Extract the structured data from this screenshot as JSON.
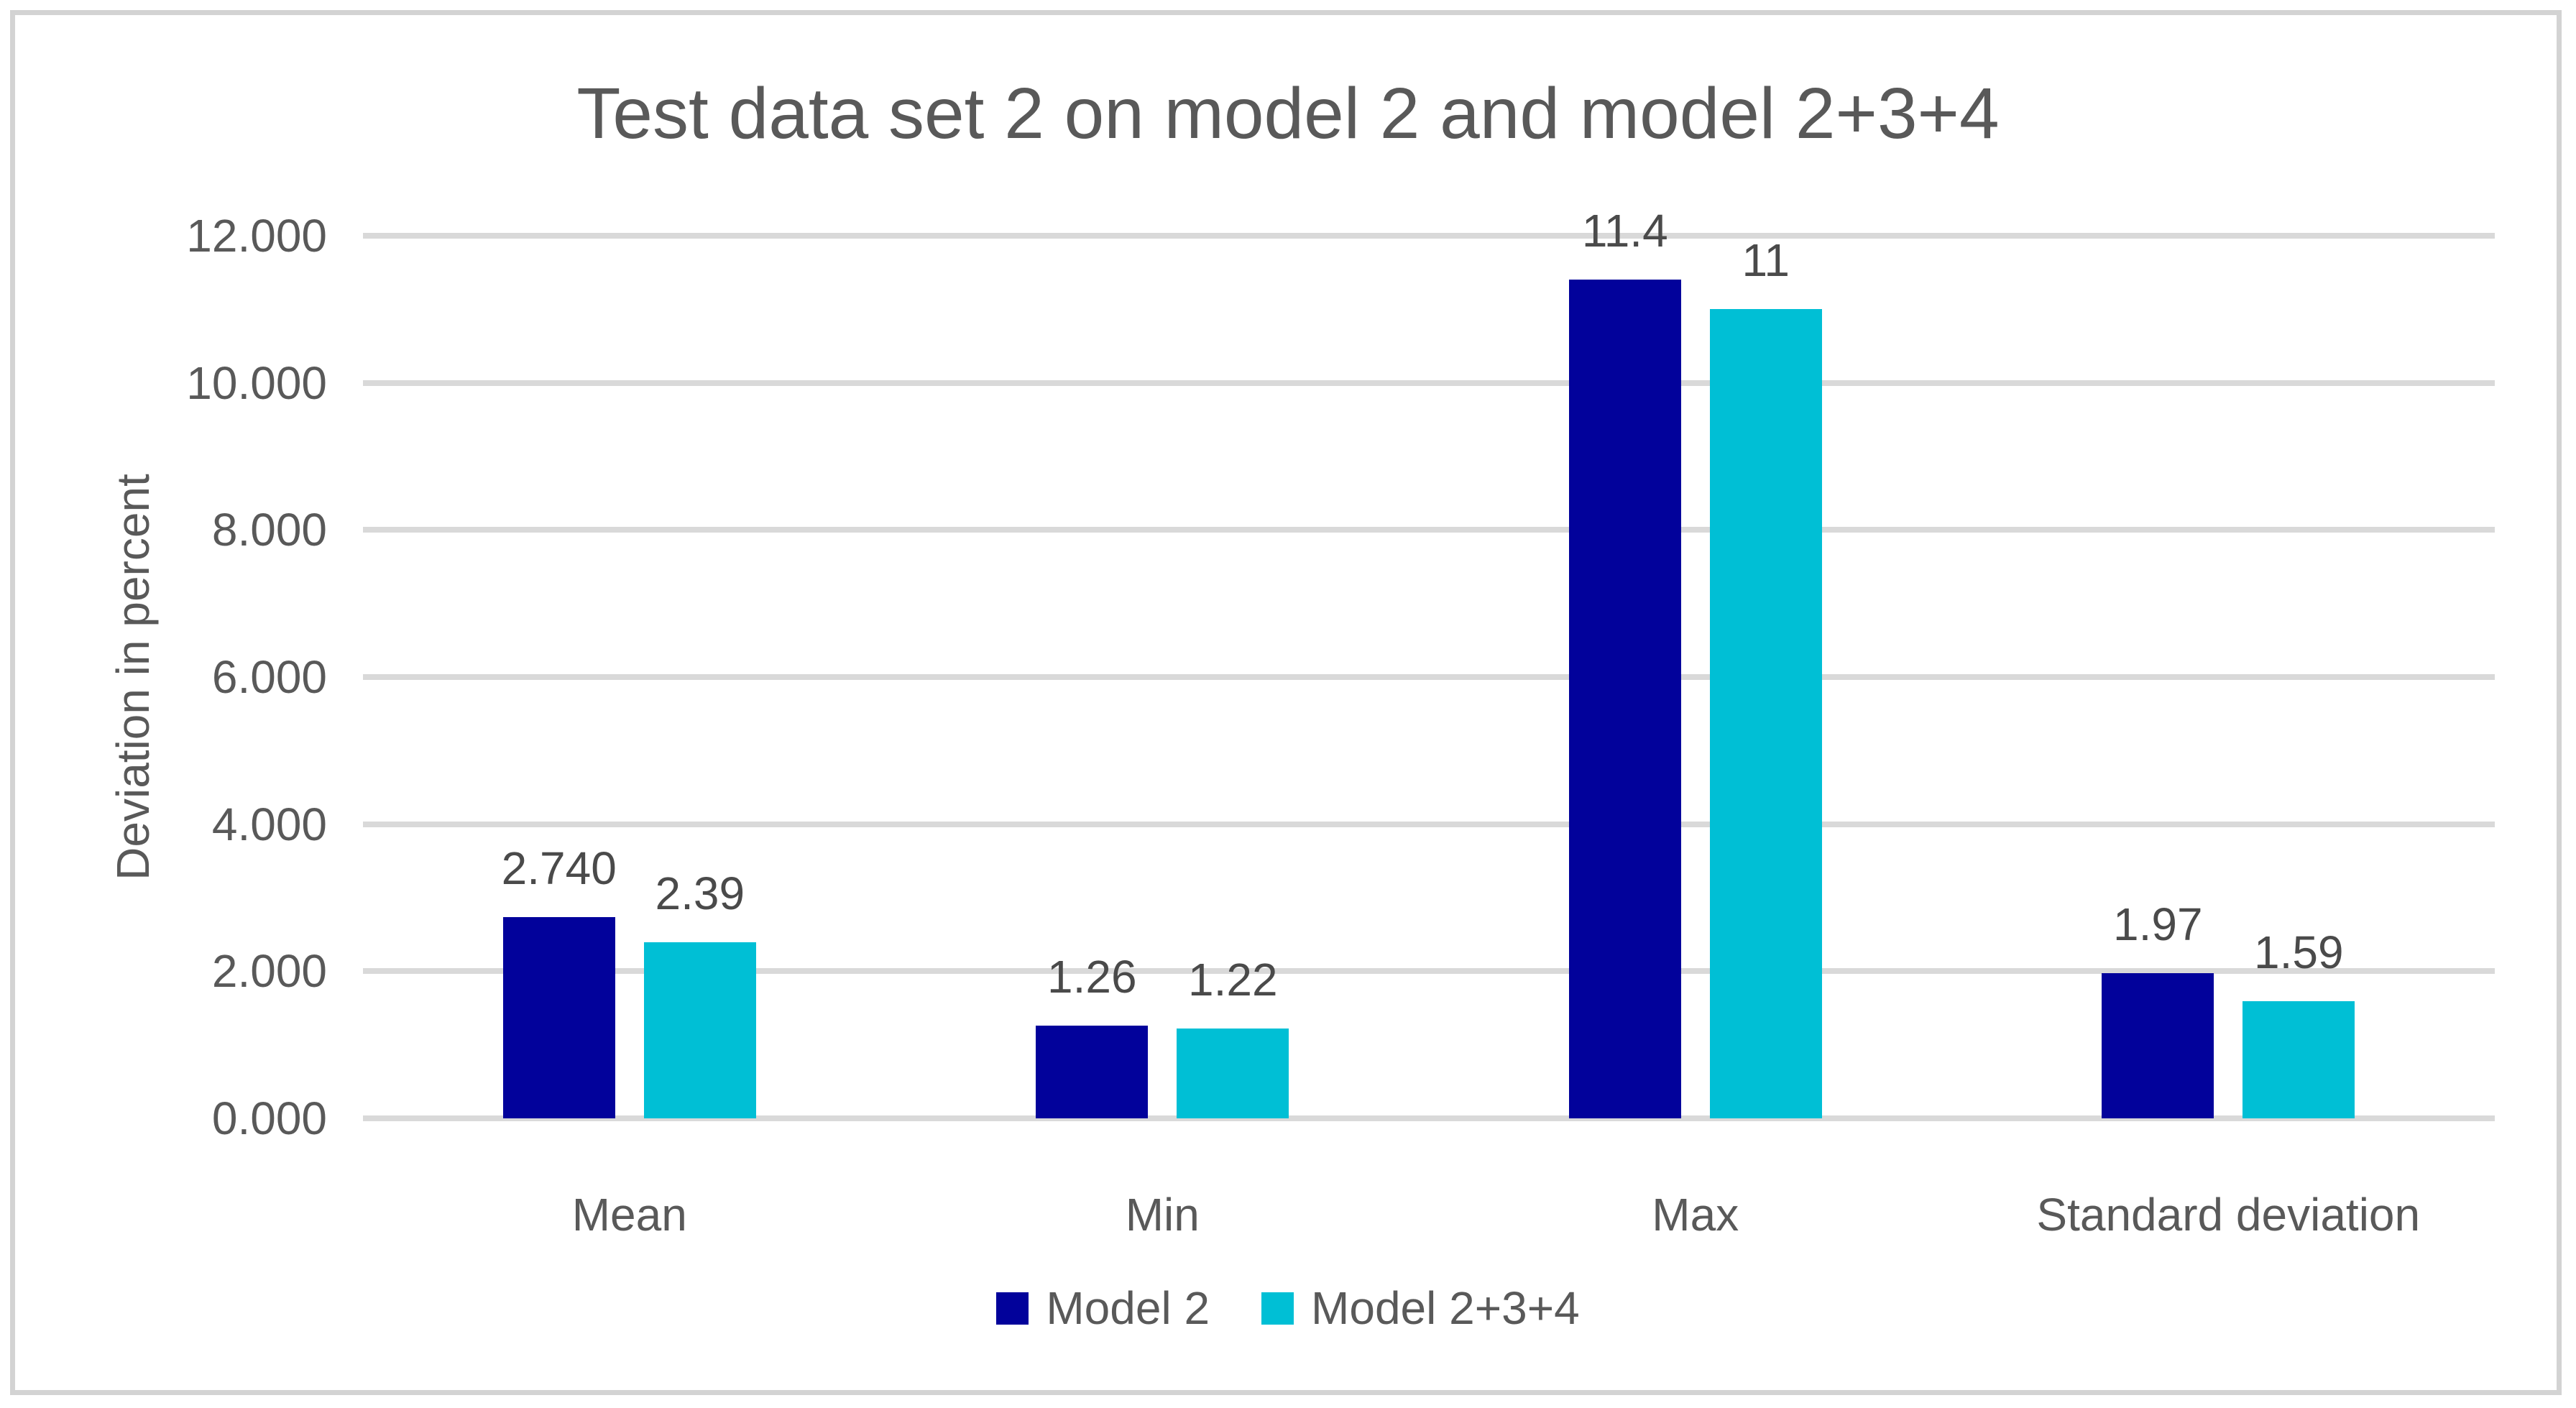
{
  "chart_data": {
    "type": "bar",
    "title": "Test data set 2 on model 2 and model 2+3+4",
    "ylabel": "Deviation in percent",
    "xlabel": "",
    "categories": [
      "Mean",
      "Min",
      "Max",
      "Standard deviation"
    ],
    "series": [
      {
        "name": "Model 2",
        "color": "#02029b",
        "values": [
          2.74,
          1.26,
          11.4,
          1.97
        ],
        "data_labels": [
          "2.740",
          "1.26",
          "11.4",
          "1.97"
        ]
      },
      {
        "name": "Model 2+3+4",
        "color": "#00bfd5",
        "values": [
          2.39,
          1.22,
          11.0,
          1.59
        ],
        "data_labels": [
          "2.39",
          "1.22",
          "11",
          "1.59"
        ]
      }
    ],
    "y_axis": {
      "min": 0,
      "max": 12,
      "step": 2,
      "tick_labels": [
        "0.000",
        "2.000",
        "4.000",
        "6.000",
        "8.000",
        "10.000",
        "12.000"
      ]
    },
    "legend_position": "bottom",
    "grid": true,
    "colors": {
      "gridline": "#d9d9d9",
      "axis_text": "#595959",
      "title_text": "#595959",
      "data_label_text": "#4a4a4a",
      "frame_border": "#d3d3d3",
      "background": "#ffffff"
    }
  }
}
